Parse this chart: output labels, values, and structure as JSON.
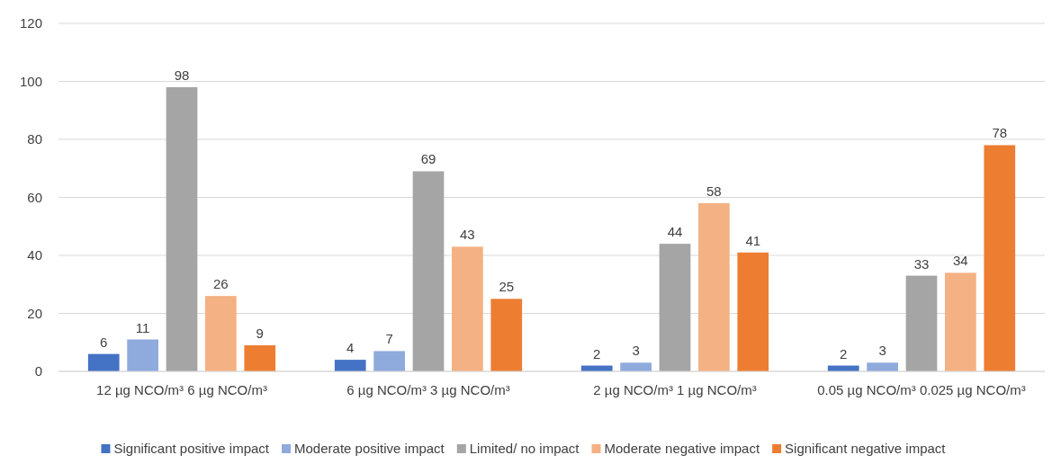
{
  "chart_data": {
    "type": "bar",
    "categories": [
      "12 µg NCO/m³ 6 µg NCO/m³",
      "6 µg NCO/m³ 3 µg NCO/m³",
      "2 µg NCO/m³ 1 µg NCO/m³",
      "0.05 µg NCO/m³ 0.025 µg NCO/m³"
    ],
    "series": [
      {
        "name": "Significant positive impact",
        "color": "#4472c4",
        "values": [
          6,
          4,
          2,
          2
        ]
      },
      {
        "name": "Moderate positive impact",
        "color": "#8faadc",
        "values": [
          11,
          7,
          3,
          3
        ]
      },
      {
        "name": "Limited/ no impact",
        "color": "#a5a5a5",
        "values": [
          98,
          69,
          44,
          33
        ]
      },
      {
        "name": "Moderate negative impact",
        "color": "#f4b183",
        "values": [
          26,
          43,
          58,
          34
        ]
      },
      {
        "name": "Significant negative impact",
        "color": "#ed7d31",
        "values": [
          9,
          25,
          41,
          78
        ]
      }
    ],
    "ylim": [
      0,
      120
    ],
    "yticks": [
      0,
      20,
      40,
      60,
      80,
      100,
      120
    ],
    "grid": "y",
    "legend": "bottom",
    "data_labels": true
  }
}
